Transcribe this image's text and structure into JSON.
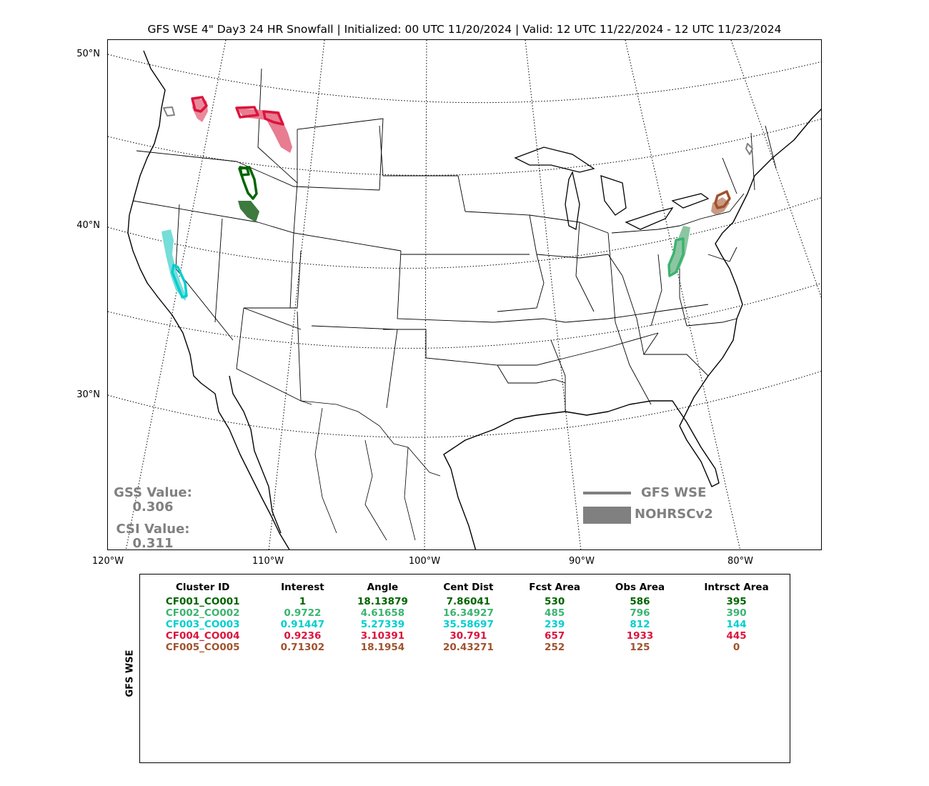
{
  "title": "GFS WSE 4\" Day3 24 HR Snowfall | Initialized: 00 UTC 11/20/2024 | Valid: 12 UTC 11/22/2024 - 12 UTC 11/23/2024",
  "lat_labels": [
    "50°N",
    "40°N",
    "30°N"
  ],
  "lon_labels": [
    "120°W",
    "110°W",
    "100°W",
    "90°W",
    "80°W"
  ],
  "stats": {
    "gss_label": "GSS Value:",
    "gss_value": "0.306",
    "csi_label": "CSI Value:",
    "csi_value": "0.311"
  },
  "legend": {
    "forecast_label": "GFS WSE",
    "observed_label": "NOHRSCv2",
    "color": "#808080"
  },
  "table": {
    "row_label": "GFS WSE",
    "headers": [
      "Cluster ID",
      "Interest",
      "Angle",
      "Cent Dist",
      "Fcst Area",
      "Obs Area",
      "Intrsct Area"
    ],
    "rows": [
      {
        "color": "#006400",
        "cells": [
          "CF001_CO001",
          "1",
          "18.13879",
          "7.86041",
          "530",
          "586",
          "395"
        ]
      },
      {
        "color": "#3CB371",
        "cells": [
          "CF002_CO002",
          "0.9722",
          "4.61658",
          "16.34927",
          "485",
          "796",
          "390"
        ]
      },
      {
        "color": "#00CED1",
        "cells": [
          "CF003_CO003",
          "0.91447",
          "5.27339",
          "35.58697",
          "239",
          "812",
          "144"
        ]
      },
      {
        "color": "#DC143C",
        "cells": [
          "CF004_CO004",
          "0.9236",
          "3.10391",
          "30.791",
          "657",
          "1933",
          "445"
        ]
      },
      {
        "color": "#A0522D",
        "cells": [
          "CF005_CO005",
          "0.71302",
          "18.1954",
          "20.43271",
          "252",
          "125",
          "0"
        ]
      }
    ]
  }
}
